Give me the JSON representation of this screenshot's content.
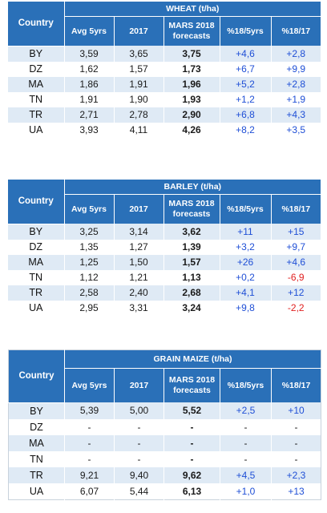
{
  "columns": {
    "country": "Country",
    "avg": "Avg 5yrs",
    "y2017": "2017",
    "mars_line1": "MARS 2018",
    "mars_line2": "forecasts",
    "pct5": "%18/5yrs",
    "pct17": "%18/17"
  },
  "tables": [
    {
      "title": "WHEAT (t/ha)",
      "rows": [
        {
          "country": "BY",
          "avg": "3,59",
          "y2017": "3,65",
          "mars": "3,75",
          "pct5": "+4,6",
          "pct17": "+2,8"
        },
        {
          "country": "DZ",
          "avg": "1,62",
          "y2017": "1,57",
          "mars": "1,73",
          "pct5": "+6,7",
          "pct17": "+9,9"
        },
        {
          "country": "MA",
          "avg": "1,86",
          "y2017": "1,91",
          "mars": "1,96",
          "pct5": "+5,2",
          "pct17": "+2,8"
        },
        {
          "country": "TN",
          "avg": "1,91",
          "y2017": "1,90",
          "mars": "1,93",
          "pct5": "+1,2",
          "pct17": "+1,9"
        },
        {
          "country": "TR",
          "avg": "2,71",
          "y2017": "2,78",
          "mars": "2,90",
          "pct5": "+6,8",
          "pct17": "+4,3"
        },
        {
          "country": "UA",
          "avg": "3,93",
          "y2017": "4,11",
          "mars": "4,26",
          "pct5": "+8,2",
          "pct17": "+3,5"
        }
      ]
    },
    {
      "title": "BARLEY (t/ha)",
      "rows": [
        {
          "country": "BY",
          "avg": "3,25",
          "y2017": "3,14",
          "mars": "3,62",
          "pct5": "+11",
          "pct17": "+15"
        },
        {
          "country": "DZ",
          "avg": "1,35",
          "y2017": "1,27",
          "mars": "1,39",
          "pct5": "+3,2",
          "pct17": "+9,7"
        },
        {
          "country": "MA",
          "avg": "1,25",
          "y2017": "1,50",
          "mars": "1,57",
          "pct5": "+26",
          "pct17": "+4,6"
        },
        {
          "country": "TN",
          "avg": "1,12",
          "y2017": "1,21",
          "mars": "1,13",
          "pct5": "+0,2",
          "pct17": "-6,9"
        },
        {
          "country": "TR",
          "avg": "2,58",
          "y2017": "2,40",
          "mars": "2,68",
          "pct5": "+4,1",
          "pct17": "+12"
        },
        {
          "country": "UA",
          "avg": "2,95",
          "y2017": "3,31",
          "mars": "3,24",
          "pct5": "+9,8",
          "pct17": "-2,2"
        }
      ]
    },
    {
      "title": "GRAIN MAIZE (t/ha)",
      "rows": [
        {
          "country": "BY",
          "avg": "5,39",
          "y2017": "5,00",
          "mars": "5,52",
          "pct5": "+2,5",
          "pct17": "+10"
        },
        {
          "country": "DZ",
          "avg": "-",
          "y2017": "-",
          "mars": "-",
          "pct5": "-",
          "pct17": "-"
        },
        {
          "country": "MA",
          "avg": "-",
          "y2017": "-",
          "mars": "-",
          "pct5": "-",
          "pct17": "-"
        },
        {
          "country": "TN",
          "avg": "-",
          "y2017": "-",
          "mars": "-",
          "pct5": "-",
          "pct17": "-"
        },
        {
          "country": "TR",
          "avg": "9,21",
          "y2017": "9,40",
          "mars": "9,62",
          "pct5": "+4,5",
          "pct17": "+2,3"
        },
        {
          "country": "UA",
          "avg": "6,07",
          "y2017": "5,44",
          "mars": "6,13",
          "pct5": "+1,0",
          "pct17": "+13"
        }
      ]
    }
  ]
}
